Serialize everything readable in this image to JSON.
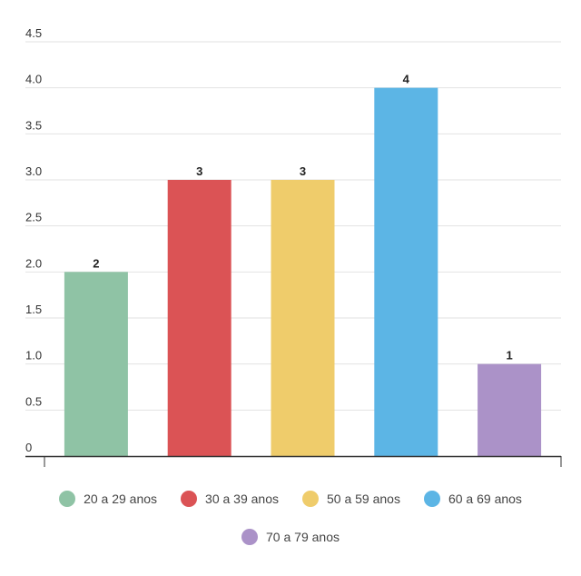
{
  "chart_data": {
    "type": "bar",
    "categories": [
      "20 a 29 anos",
      "30 a 39 anos",
      "50 a 59 anos",
      "60 a 69 anos",
      "70 a 79 anos"
    ],
    "values": [
      2,
      3,
      3,
      4,
      1
    ],
    "data_labels": [
      "2",
      "3",
      "3",
      "4",
      "1"
    ],
    "colors": [
      "#8fc3a5",
      "#db5355",
      "#efcc6b",
      "#5cb5e5",
      "#ab92c8"
    ],
    "yticks": [
      0,
      0.5,
      1.0,
      1.5,
      2.0,
      2.5,
      3.0,
      3.5,
      4.0,
      4.5
    ],
    "ytick_labels": [
      "0",
      "0.5",
      "1.0",
      "1.5",
      "2.0",
      "2.5",
      "3.0",
      "3.5",
      "4.0",
      "4.5"
    ],
    "ylim": [
      0,
      4.5
    ],
    "grid": true,
    "legend_position": "bottom",
    "title": "",
    "xlabel": "",
    "ylabel": ""
  }
}
